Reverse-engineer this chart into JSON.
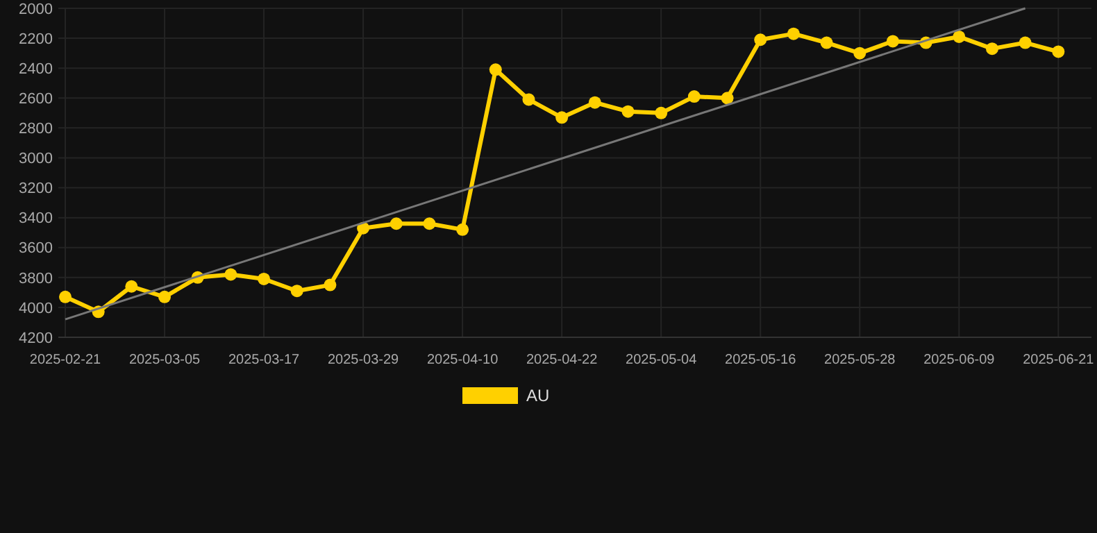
{
  "chart_data": {
    "type": "line",
    "x": [
      "2025-02-21",
      "2025-02-25",
      "2025-03-01",
      "2025-03-05",
      "2025-03-09",
      "2025-03-13",
      "2025-03-17",
      "2025-03-21",
      "2025-03-25",
      "2025-03-29",
      "2025-04-02",
      "2025-04-06",
      "2025-04-10",
      "2025-04-14",
      "2025-04-18",
      "2025-04-22",
      "2025-04-26",
      "2025-04-30",
      "2025-05-04",
      "2025-05-08",
      "2025-05-12",
      "2025-05-16",
      "2025-05-20",
      "2025-05-24",
      "2025-05-28",
      "2025-06-01",
      "2025-06-05",
      "2025-06-09",
      "2025-06-13",
      "2025-06-17",
      "2025-06-21"
    ],
    "series": [
      {
        "name": "AU",
        "color": "#ffd000",
        "marker": "circle",
        "values": [
          3930,
          4030,
          3860,
          3930,
          3800,
          3780,
          3810,
          3890,
          3850,
          3470,
          3440,
          3440,
          3480,
          2410,
          2610,
          2730,
          2630,
          2690,
          2700,
          2590,
          2600,
          2210,
          2170,
          2230,
          2300,
          2220,
          2230,
          2190,
          2270,
          2230,
          2290
        ]
      },
      {
        "type": "line",
        "color": "#777777",
        "marker": "none",
        "x": [
          "2025-02-21",
          "2025-06-17"
        ],
        "values": [
          4080,
          2000
        ]
      }
    ],
    "xlim": [
      "2025-02-21",
      "2025-06-25"
    ],
    "xticks": [
      "2025-02-21",
      "2025-03-05",
      "2025-03-17",
      "2025-03-29",
      "2025-04-10",
      "2025-04-22",
      "2025-05-04",
      "2025-05-16",
      "2025-05-28",
      "2025-06-09",
      "2025-06-21"
    ],
    "ylim": [
      4200,
      2000
    ],
    "yticks": [
      2000,
      2200,
      2400,
      2600,
      2800,
      3000,
      3200,
      3400,
      3600,
      3800,
      4000,
      4200
    ],
    "grid": true,
    "legend": "bottom"
  }
}
